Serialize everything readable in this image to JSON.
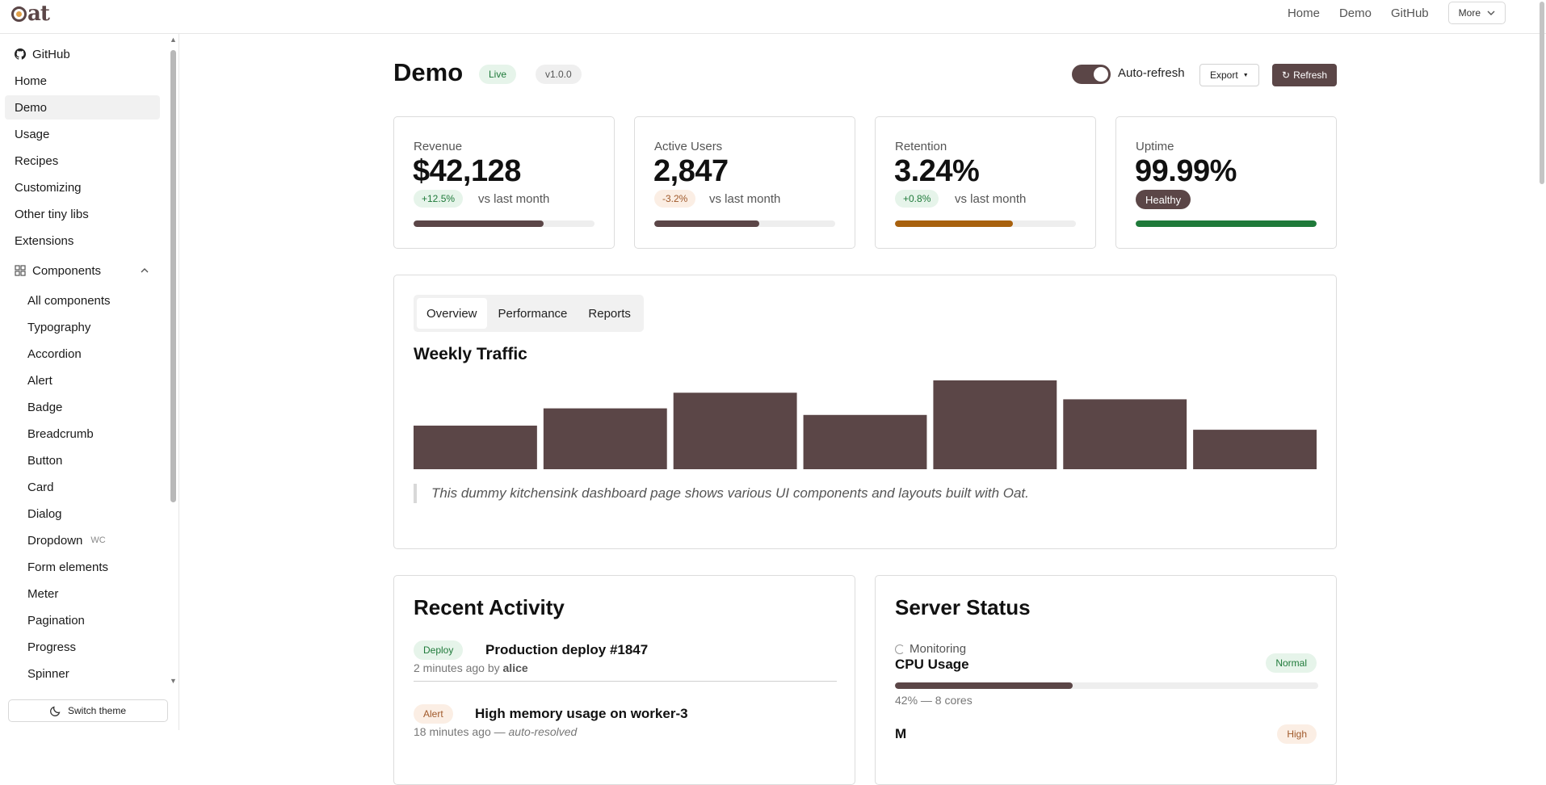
{
  "brand": "Oat",
  "topnav": {
    "items": [
      "Home",
      "Demo",
      "GitHub"
    ],
    "more_label": "More"
  },
  "sidebar": {
    "items": [
      {
        "label": "GitHub",
        "icon": "github-icon"
      },
      {
        "label": "Home"
      },
      {
        "label": "Demo",
        "active": true
      },
      {
        "label": "Usage"
      },
      {
        "label": "Recipes"
      },
      {
        "label": "Customizing"
      },
      {
        "label": "Other tiny libs"
      },
      {
        "label": "Extensions"
      }
    ],
    "components_label": "Components",
    "sub_items": [
      {
        "label": "All components"
      },
      {
        "label": "Typography"
      },
      {
        "label": "Accordion"
      },
      {
        "label": "Alert"
      },
      {
        "label": "Badge"
      },
      {
        "label": "Breadcrumb"
      },
      {
        "label": "Button"
      },
      {
        "label": "Card"
      },
      {
        "label": "Dialog"
      },
      {
        "label": "Dropdown",
        "tag": "WC"
      },
      {
        "label": "Form elements"
      },
      {
        "label": "Meter"
      },
      {
        "label": "Pagination"
      },
      {
        "label": "Progress"
      },
      {
        "label": "Spinner"
      }
    ],
    "switch_theme_label": "Switch theme"
  },
  "header": {
    "title": "Demo",
    "live_badge": "Live",
    "version_badge": "v1.0.0",
    "auto_refresh_label": "Auto-refresh",
    "auto_refresh_on": true,
    "export_label": "Export",
    "refresh_label": "Refresh"
  },
  "kpis": [
    {
      "label": "Revenue",
      "value": "$42,128",
      "delta": "+12.5%",
      "delta_type": "up",
      "vs": "vs last month",
      "progress": 0.72,
      "bar_color": "#5b4647"
    },
    {
      "label": "Active Users",
      "value": "2,847",
      "delta": "-3.2%",
      "delta_type": "down",
      "vs": "vs last month",
      "progress": 0.58,
      "bar_color": "#5b4647"
    },
    {
      "label": "Retention",
      "value": "3.24%",
      "delta": "+0.8%",
      "delta_type": "up",
      "vs": "vs last month",
      "progress": 0.65,
      "bar_color": "#a8610e"
    },
    {
      "label": "Uptime",
      "value": "99.99%",
      "status": "Healthy",
      "progress": 1.0,
      "bar_color": "#1f7a3a"
    }
  ],
  "traffic": {
    "tabs": [
      "Overview",
      "Performance",
      "Reports"
    ],
    "active_tab": "Overview",
    "title": "Weekly Traffic",
    "quote": "This dummy kitchensink dashboard page shows various UI components and layouts built with Oat."
  },
  "chart_data": {
    "type": "bar",
    "categories": [
      "",
      "",
      "",
      "",
      "",
      "",
      ""
    ],
    "values": [
      53,
      74,
      93,
      66,
      108,
      85,
      48
    ],
    "ylim": [
      0,
      108
    ],
    "color": "#5b4647",
    "grid": false
  },
  "activity": {
    "title": "Recent Activity",
    "items": [
      {
        "badge": "Deploy",
        "badge_type": "up",
        "title": "Production deploy #1847",
        "meta_prefix": "2 minutes ago by ",
        "meta_user": "alice"
      },
      {
        "badge": "Alert",
        "badge_type": "down",
        "title": "High memory usage on worker-3",
        "meta_prefix": "18 minutes ago — ",
        "meta_user": "auto-resolved"
      }
    ]
  },
  "server": {
    "title": "Server Status",
    "monitoring_label": "Monitoring",
    "cpu_label": "CPU Usage",
    "cpu_status": "Normal",
    "cpu_value": 0.42,
    "cpu_meta": "42% — 8 cores",
    "next_label": "M",
    "next_status": "High"
  }
}
